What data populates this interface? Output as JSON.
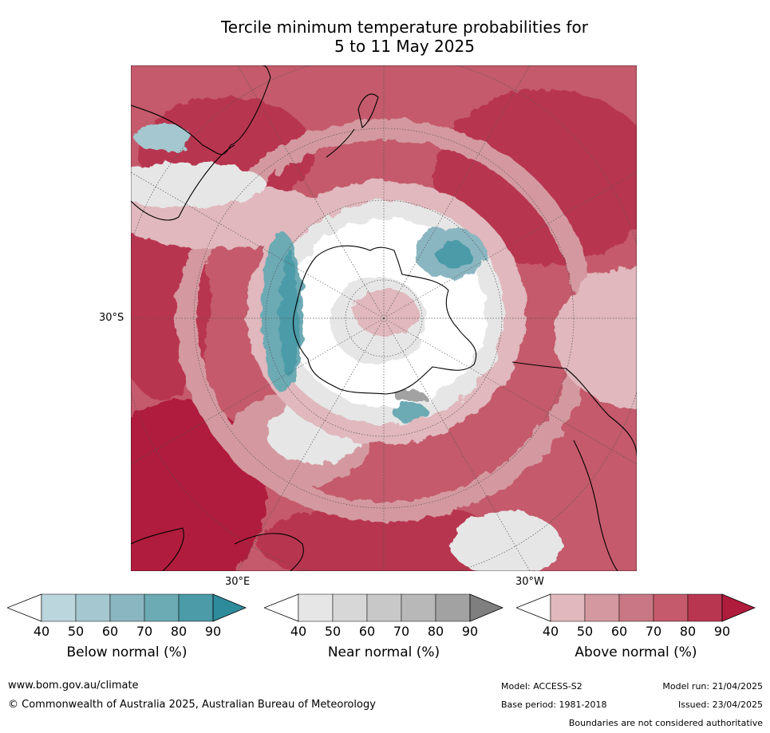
{
  "title_line1": "Tercile minimum temperature probabilities for",
  "title_line2": "5 to 11 May 2025",
  "map": {
    "projection": "south-polar-stereographic",
    "lat_label": "30°S",
    "lon_label_east": "30°E",
    "lon_label_west": "30°W",
    "colors": {
      "above": [
        "#e0b8bd",
        "#d499a0",
        "#c97784",
        "#c45a6b",
        "#b83650",
        "#b01c3c"
      ],
      "near": [
        "#e6e6e6",
        "#d7d7d7",
        "#c8c8c8",
        "#b8b8b8",
        "#a2a2a2",
        "#7f7f7f"
      ],
      "below": [
        "#bcd6dd",
        "#a5c7cf",
        "#8ab6c1",
        "#6caab4",
        "#4b9ba8",
        "#2e8b9b"
      ]
    }
  },
  "legends": [
    {
      "caption": "Below normal (%)",
      "ticks": [
        "40",
        "50",
        "60",
        "70",
        "80",
        "90"
      ]
    },
    {
      "caption": "Near normal (%)",
      "ticks": [
        "40",
        "50",
        "60",
        "70",
        "80",
        "90"
      ]
    },
    {
      "caption": "Above normal (%)",
      "ticks": [
        "40",
        "50",
        "60",
        "70",
        "80",
        "90"
      ]
    }
  ],
  "footer": {
    "website": "www.bom.gov.au/climate",
    "copyright": "© Commonwealth of Australia 2025, Australian Bureau of Meteorology",
    "model": "Model: ACCESS-S2",
    "base_period": "Base period: 1981-2018",
    "model_run": "Model run: 21/04/2025",
    "issued": "Issued: 23/04/2025",
    "disclaimer": "Boundaries are not considered authoritative"
  }
}
